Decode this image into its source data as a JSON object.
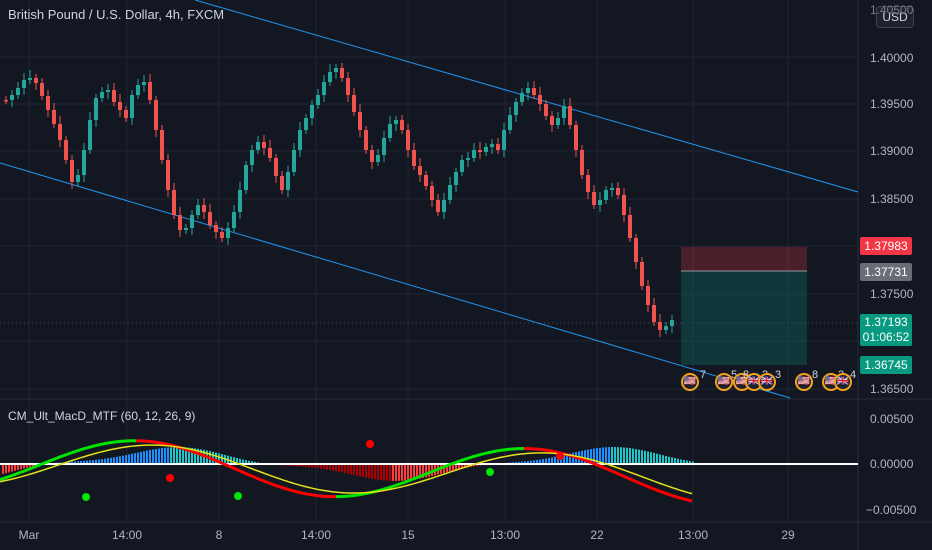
{
  "header": {
    "symbol": "British Pound / U.S. Dollar",
    "interval": "4h",
    "exchange": "FXCM",
    "currency_button": "USD"
  },
  "indicator": {
    "name": "CM_Ult_MacD_MTF (60, 12, 26, 9)"
  },
  "price_axis": {
    "top_partial": "1.40500",
    "labels": [
      "1.40000",
      "1.39500",
      "1.39000",
      "1.38500",
      "1.37500",
      "1.36500"
    ]
  },
  "price_tags": {
    "stop": "1.37983",
    "entry": "1.37731",
    "current": "1.37193",
    "countdown": "01:06:52",
    "target": "1.36745"
  },
  "macd_axis": {
    "labels": [
      "0.00500",
      "0.00000",
      "−0.00500"
    ]
  },
  "time_axis": {
    "labels": [
      "Mar",
      "14:00",
      "8",
      "14:00",
      "15",
      "13:00",
      "22",
      "13:00",
      "29"
    ]
  },
  "events": {
    "counts": [
      "7",
      "5",
      "8",
      "2",
      "3",
      "8",
      "3",
      "4"
    ]
  },
  "colors": {
    "background": "#131722",
    "bull": "#26a69a",
    "bear": "#ef5350",
    "channel": "#2196f3",
    "macd_up": "#00e600",
    "macd_down": "#ff0000",
    "signal": "#e2e21a",
    "stop_zone": "#f23645",
    "target_zone": "#089981",
    "event_ring": "#f7a21b"
  }
}
